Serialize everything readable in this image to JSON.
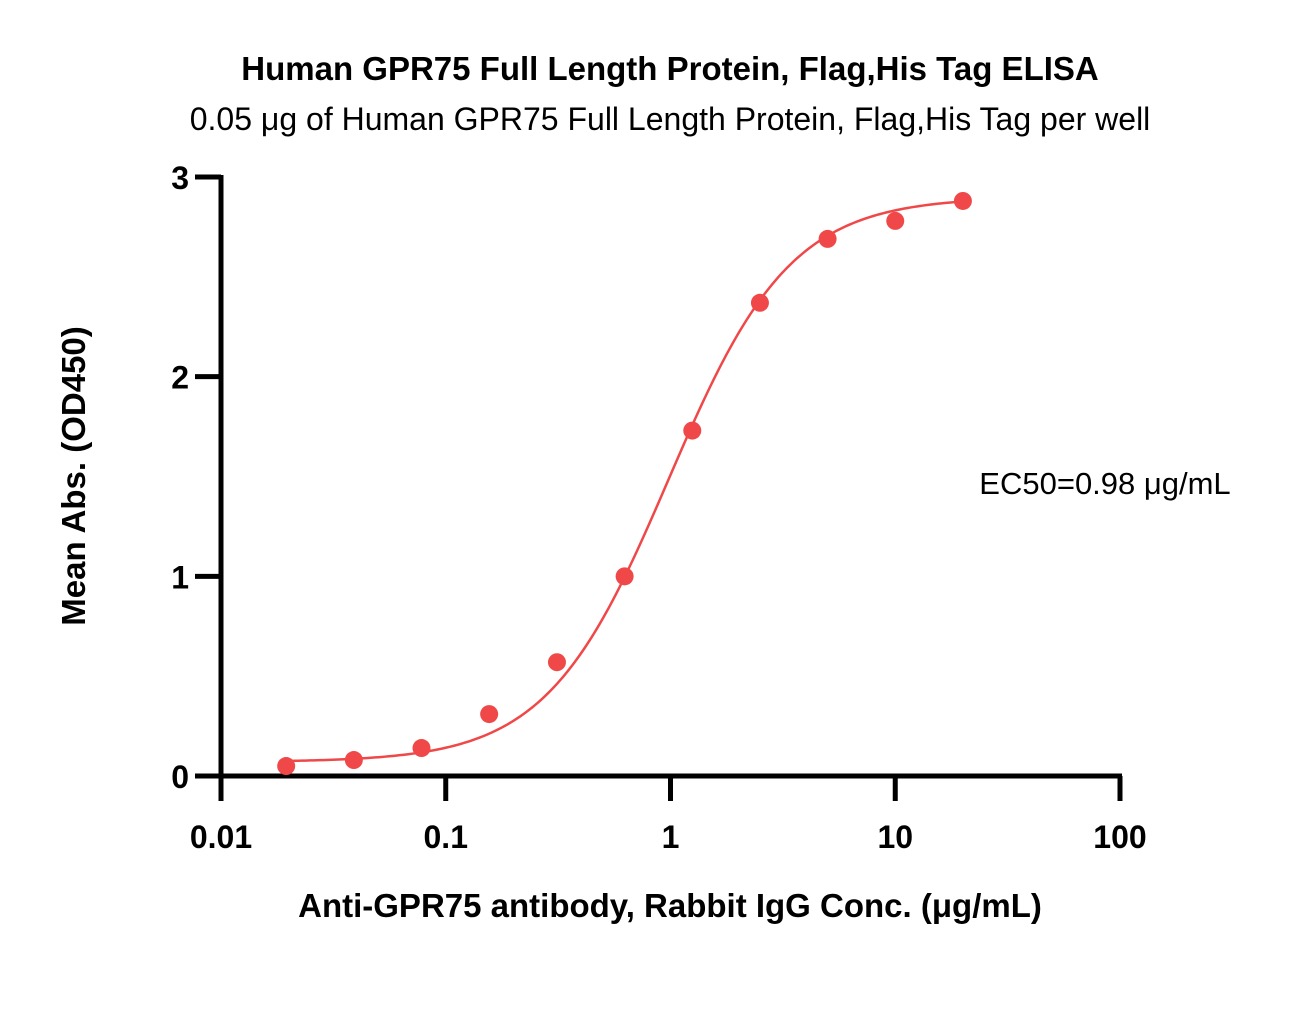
{
  "chart_data": {
    "type": "scatter",
    "title": "Human GPR75 Full Length Protein, Flag,His Tag ELISA",
    "subtitle": "0.05 μg of Human GPR75 Full Length Protein, Flag,His Tag per well",
    "xlabel": "Anti-GPR75 antibody, Rabbit IgG Conc. (μg/mL)",
    "ylabel": "Mean Abs. (OD450)",
    "xscale": "log",
    "xlim": [
      0.01,
      100
    ],
    "ylim": [
      0,
      3
    ],
    "xticks": [
      0.01,
      0.1,
      1,
      10,
      100
    ],
    "xtick_labels": [
      "0.01",
      "0.1",
      "1",
      "10",
      "100"
    ],
    "yticks": [
      0,
      1,
      2,
      3
    ],
    "ytick_labels": [
      "0",
      "1",
      "2",
      "3"
    ],
    "grid": false,
    "annotation": "EC50=0.98 μg/mL",
    "series": [
      {
        "color": "#f04848",
        "x": [
          0.0195,
          0.039,
          0.078,
          0.156,
          0.3125,
          0.625,
          1.25,
          2.5,
          5,
          10,
          20
        ],
        "y": [
          0.05,
          0.08,
          0.14,
          0.31,
          0.57,
          1.0,
          1.73,
          2.37,
          2.69,
          2.78,
          2.88
        ],
        "fit": {
          "bottom": 0.07,
          "top": 2.9,
          "ec50": 0.98,
          "hill": 1.6
        }
      }
    ]
  }
}
